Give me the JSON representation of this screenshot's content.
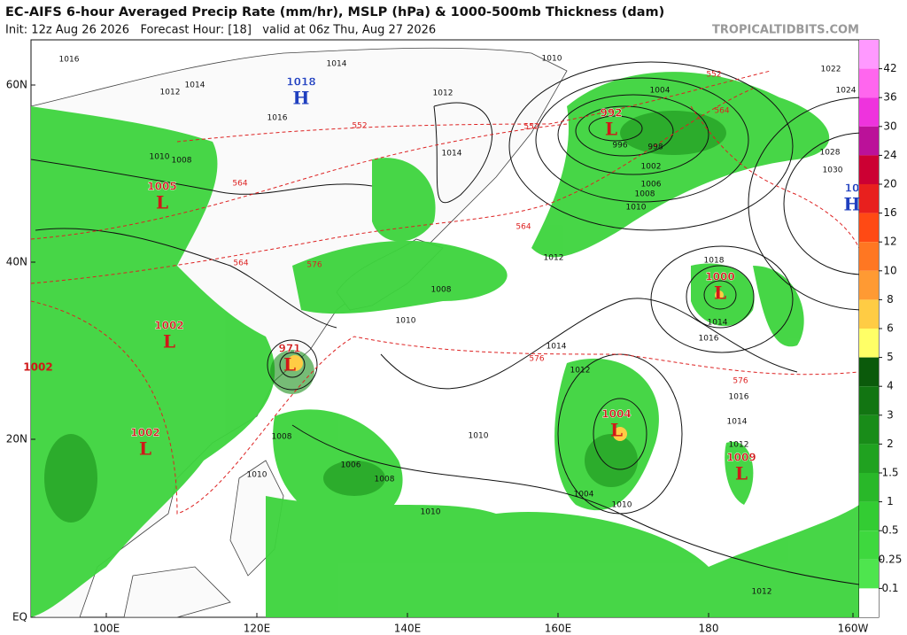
{
  "header": {
    "title": "EC-AIFS 6-hour Averaged Precip Rate (mm/hr), MSLP (hPa) & 1000-500mb Thickness (dam)",
    "subtitle": "Init: 12z Aug 26 2026   Forecast Hour: [18]   valid at 06z Thu, Aug 27 2026",
    "source": "TROPICALTIDBITS.COM"
  },
  "map": {
    "lat_labels": [
      "60N",
      "40N",
      "20N",
      "EQ"
    ],
    "lon_labels": [
      "100E",
      "120E",
      "140E",
      "160E",
      "180",
      "160W"
    ],
    "centers": [
      {
        "type": "H",
        "pressure": "1018"
      },
      {
        "type": "L",
        "pressure": "992"
      },
      {
        "type": "L",
        "pressure": "1005"
      },
      {
        "type": "L",
        "pressure": "1000"
      },
      {
        "type": "L",
        "pressure": "971"
      },
      {
        "type": "L",
        "pressure": "1002"
      },
      {
        "type": "L",
        "pressure": "1004"
      },
      {
        "type": "L",
        "pressure": "1002"
      },
      {
        "type": "L",
        "pressure": "1009"
      },
      {
        "type": "H",
        "pressure": "10"
      }
    ],
    "extra_pressure": "1002",
    "isobar_labels": [
      "1016",
      "1014",
      "1012",
      "1014",
      "1016",
      "1012",
      "1014",
      "1010",
      "1008",
      "996",
      "998",
      "1002",
      "1006",
      "1008",
      "1010",
      "1004",
      "1018",
      "1014",
      "1016",
      "1028",
      "1030",
      "1022",
      "1024",
      "1012",
      "1008",
      "1010",
      "1012",
      "1014",
      "1016",
      "1014",
      "1012",
      "1010",
      "1008",
      "1006",
      "1008",
      "1010",
      "1010",
      "1010",
      "1010",
      "1004",
      "1012"
    ],
    "thickness_labels": [
      "552",
      "552",
      "564",
      "564",
      "576",
      "576",
      "576",
      "564",
      "552",
      "564"
    ]
  },
  "colorbar": {
    "labels": [
      "42",
      "36",
      "30",
      "24",
      "20",
      "16",
      "12",
      "10",
      "8",
      "6",
      "5",
      "4",
      "3",
      "2",
      "1.5",
      "1",
      "0.5",
      "0.25",
      "0.1"
    ]
  }
}
